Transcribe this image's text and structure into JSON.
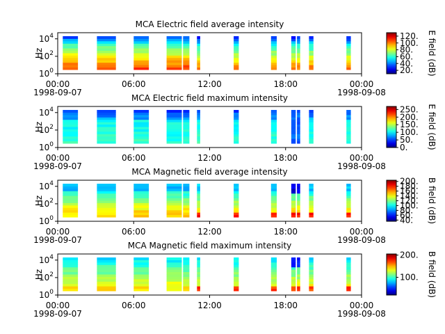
{
  "x_ticks": [
    "00:00",
    "06:00",
    "12:00",
    "18:00",
    "00:00"
  ],
  "date_start": "1998-09-07",
  "date_end": "1998-09-08",
  "chart_data": [
    {
      "type": "heatmap",
      "title": "MCA  Electric field average intensity",
      "ylabel": "Hz",
      "yscale": "log",
      "ylim": [
        1,
        50000
      ],
      "y_tick_bases": [
        "10",
        "10",
        "10"
      ],
      "y_tick_exps": [
        "0",
        "2",
        "4"
      ],
      "xlim_hours": [
        0,
        24
      ],
      "x_ticks": [
        "00:00",
        "06:00",
        "12:00",
        "18:00",
        "00:00"
      ],
      "colorbar_label": "E field (dB)",
      "colorbar_range": [
        10,
        130
      ],
      "colorbar_ticks": [
        "120.",
        "100.",
        "80.",
        "60.",
        "40.",
        "20."
      ],
      "colorbar_tick_values": [
        120,
        100,
        80,
        60,
        40,
        20
      ],
      "colormap": "jet",
      "profile": "e_avg"
    },
    {
      "type": "heatmap",
      "title": "MCA  Electric field maximum intensity",
      "ylabel": "Hz",
      "yscale": "log",
      "ylim": [
        1,
        50000
      ],
      "y_tick_bases": [
        "10",
        "10",
        "10"
      ],
      "y_tick_exps": [
        "0",
        "2",
        "4"
      ],
      "xlim_hours": [
        0,
        24
      ],
      "x_ticks": [
        "00:00",
        "06:00",
        "12:00",
        "18:00",
        "00:00"
      ],
      "colorbar_label": "E field (dB)",
      "colorbar_range": [
        0,
        270
      ],
      "colorbar_ticks": [
        "250.",
        "200.",
        "150.",
        "100.",
        "50.",
        "0."
      ],
      "colorbar_tick_values": [
        250,
        200,
        150,
        100,
        50,
        0
      ],
      "colormap": "jet",
      "profile": "e_max"
    },
    {
      "type": "heatmap",
      "title": "MCA  Magnetic field average intensity",
      "ylabel": "Hz",
      "yscale": "log",
      "ylim": [
        1,
        50000
      ],
      "y_tick_bases": [
        "10",
        "10",
        "10"
      ],
      "y_tick_exps": [
        "0",
        "2",
        "4"
      ],
      "xlim_hours": [
        0,
        24
      ],
      "x_ticks": [
        "00:00",
        "06:00",
        "12:00",
        "18:00",
        "00:00"
      ],
      "colorbar_label": "B field (dB)",
      "colorbar_range": [
        35,
        205
      ],
      "colorbar_ticks": [
        "200.",
        "180.",
        "160.",
        "140.",
        "120.",
        "100.",
        "80.",
        "60.",
        "40."
      ],
      "colorbar_tick_values": [
        200,
        180,
        160,
        140,
        120,
        100,
        80,
        60,
        40
      ],
      "colormap": "jet",
      "profile": "b_avg"
    },
    {
      "type": "heatmap",
      "title": "MCA  Magnetic field maximum intensity",
      "ylabel": "Hz",
      "yscale": "log",
      "ylim": [
        1,
        50000
      ],
      "y_tick_bases": [
        "10",
        "10",
        "10"
      ],
      "y_tick_exps": [
        "0",
        "2",
        "4"
      ],
      "xlim_hours": [
        0,
        24
      ],
      "x_ticks": [
        "00:00",
        "06:00",
        "12:00",
        "18:00",
        "00:00"
      ],
      "colorbar_label": "B field (dB)",
      "colorbar_range": [
        20,
        205
      ],
      "colorbar_ticks": [
        "200.",
        "100."
      ],
      "colorbar_tick_values": [
        200,
        100
      ],
      "colormap": "jet",
      "profile": "b_max"
    }
  ],
  "data_intervals_hours": [
    [
      0.4,
      1.6
    ],
    [
      3.1,
      4.6
    ],
    [
      6.0,
      7.2
    ],
    [
      8.6,
      9.8
    ],
    [
      9.9,
      10.4
    ],
    [
      11.0,
      11.25
    ],
    [
      13.9,
      14.3
    ],
    [
      16.85,
      17.3
    ],
    [
      18.45,
      18.8
    ],
    [
      18.9,
      19.15
    ],
    [
      19.85,
      20.2
    ],
    [
      22.8,
      23.15
    ]
  ]
}
